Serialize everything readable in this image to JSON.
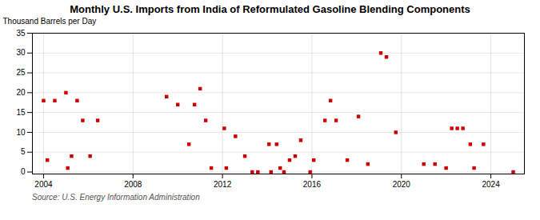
{
  "chart_data": {
    "type": "scatter",
    "title": "Monthly U.S. Imports from India of Reformulated Gasoline Blending Components",
    "ylabel": "Thousand Barrels per Day",
    "source": "Source: U.S. Energy Information Administration",
    "color": "#cc0000",
    "marker": "square",
    "grid": true,
    "xlim": [
      2003.5,
      2025.5
    ],
    "ylim": [
      -0.5,
      35
    ],
    "xticks": [
      2004,
      2008,
      2012,
      2016,
      2020,
      2024
    ],
    "yticks": [
      0,
      5,
      10,
      15,
      20,
      25,
      30,
      35
    ],
    "x": [
      2004.0,
      2004.17,
      2004.5,
      2005.0,
      2005.08,
      2005.25,
      2005.5,
      2005.75,
      2006.08,
      2006.42,
      2009.5,
      2010.0,
      2010.5,
      2010.75,
      2011.0,
      2011.25,
      2011.5,
      2012.08,
      2012.17,
      2012.58,
      2013.0,
      2013.33,
      2013.58,
      2014.08,
      2014.17,
      2014.42,
      2014.58,
      2014.75,
      2015.0,
      2015.25,
      2015.5,
      2015.92,
      2016.08,
      2016.58,
      2016.83,
      2017.08,
      2017.58,
      2018.08,
      2018.5,
      2019.08,
      2019.33,
      2019.75,
      2021.0,
      2021.5,
      2022.0,
      2022.25,
      2022.5,
      2022.75,
      2023.08,
      2023.25,
      2023.67,
      2025.0
    ],
    "values": [
      18,
      3,
      18,
      20,
      1,
      4,
      18,
      13,
      4,
      13,
      19,
      17,
      7,
      17,
      21,
      13,
      1,
      11,
      1,
      9,
      4,
      0,
      0,
      7,
      0,
      7,
      1,
      0,
      3,
      4,
      8,
      0,
      3,
      13,
      18,
      13,
      3,
      14,
      2,
      30,
      29,
      10,
      2,
      2,
      1,
      11,
      11,
      11,
      7,
      1,
      7,
      0
    ]
  }
}
